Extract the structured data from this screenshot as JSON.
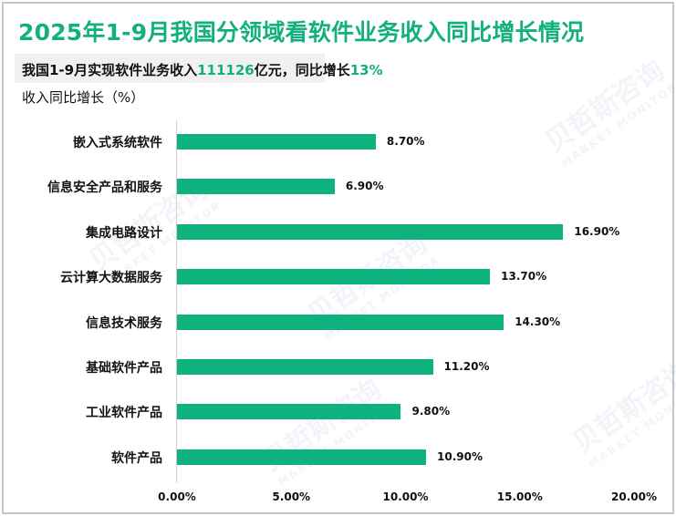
{
  "header": {
    "title": "2025年1-9月我国分领域看软件业务收入同比增长情况",
    "subtitle_prefix": "我国1-9月实现软件业务收入",
    "subtitle_value": "111126",
    "subtitle_mid": "亿元，同比增长",
    "subtitle_growth": "13%",
    "unit_label": "收入同比增长（%）"
  },
  "watermark": {
    "cn": "贝哲斯咨询",
    "en": "MARKET MONITOR"
  },
  "colors": {
    "accent": "#12b07f",
    "bar": "#0fb27e",
    "border": "#c6c6c6"
  },
  "chart_data": {
    "type": "bar",
    "orientation": "horizontal",
    "title": "2025年1-9月我国分领域看软件业务收入同比增长情况",
    "subtitle": "我国1-9月实现软件业务收入111126亿元，同比增长13%",
    "xlabel": "",
    "ylabel": "收入同比增长（%）",
    "categories": [
      "嵌入式系统软件",
      "信息安全产品和服务",
      "集成电路设计",
      "云计算大数据服务",
      "信息技术服务",
      "基础软件产品",
      "工业软件产品",
      "软件产品"
    ],
    "values": [
      8.7,
      6.9,
      16.9,
      13.7,
      14.3,
      11.2,
      9.8,
      10.9
    ],
    "value_labels": [
      "8.70%",
      "6.90%",
      "16.90%",
      "13.70%",
      "14.30%",
      "11.20%",
      "9.80%",
      "10.90%"
    ],
    "xlim": [
      0,
      20
    ],
    "x_ticks": [
      "0.00%",
      "5.00%",
      "10.00%",
      "15.00%",
      "20.00%"
    ],
    "grid": false,
    "legend": "none"
  }
}
